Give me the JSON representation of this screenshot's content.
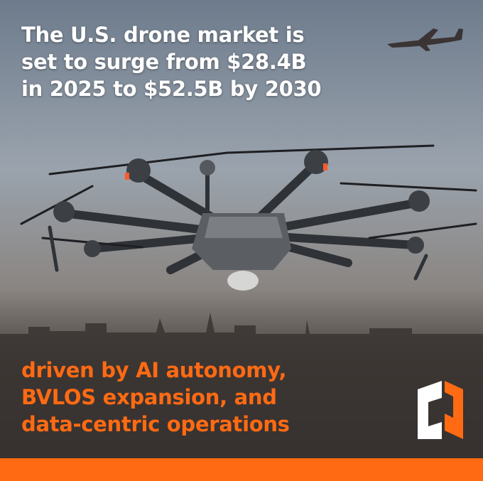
{
  "headline": {
    "lines": [
      "The U.S. drone market is",
      "set to surge from $28.4B",
      "in 2025 to $52.5B by 2030"
    ]
  },
  "subheadline": {
    "lines": [
      "driven by AI autonomy,",
      "BVLOS expansion, and",
      "data-centric operations"
    ]
  }
}
